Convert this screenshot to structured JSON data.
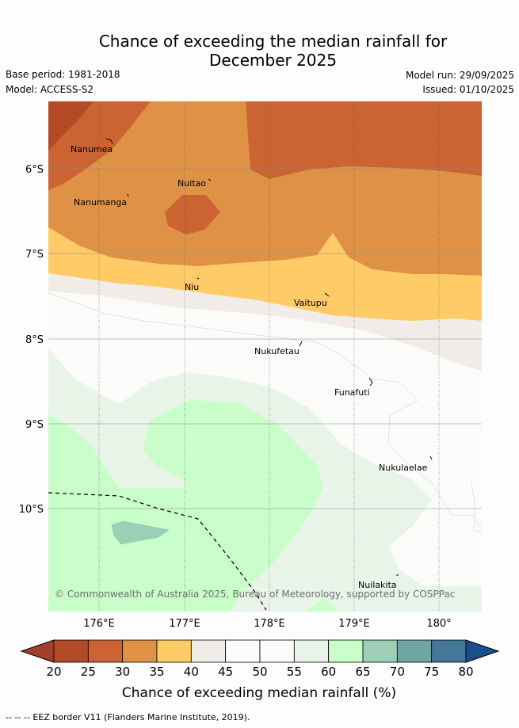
{
  "header": {
    "title_line1": "Chance of exceeding the median rainfall for",
    "title_line2": "December 2025",
    "base_period": "Base period: 1981-2018",
    "model": "Model: ACCESS-S2",
    "model_run": "Model run: 29/09/2025",
    "issued": "Issued: 01/10/2025"
  },
  "map": {
    "lon_ticks": [
      "176°E",
      "177°E",
      "178°E",
      "179°E",
      "180°"
    ],
    "lat_ticks": [
      "6°S",
      "7°S",
      "8°S",
      "9°S",
      "10°S"
    ],
    "places": [
      "Nanumea",
      "Nuitao",
      "Nanumanga",
      "Niu",
      "Vaitupu",
      "Nukufetau",
      "Funafuti",
      "Nukulaelae",
      "Nuilakita"
    ],
    "copyright": "© Commonwealth of Australia 2025, Bureau of Meteorology, supported by COSPPac"
  },
  "colorbar": {
    "ticks": [
      "20",
      "25",
      "30",
      "35",
      "40",
      "45",
      "50",
      "55",
      "60",
      "65",
      "70",
      "75",
      "80"
    ],
    "colors": [
      "#b34b28",
      "#cb6432",
      "#df9246",
      "#fecb67",
      "#f1ece8",
      "#fcfcfb",
      "#fbfcfa",
      "#e9f4e8",
      "#c9fdc9",
      "#9dcfb6",
      "#6fa5a5",
      "#43789a"
    ],
    "under_color": "#a24029",
    "over_color": "#1a4f8c",
    "label": "Chance of exceeding median rainfall (%)"
  },
  "footer": {
    "legend_symbol": "--  --  --",
    "legend_text": "EEZ border V11 (Flanders Marine Institute, 2019)."
  }
}
